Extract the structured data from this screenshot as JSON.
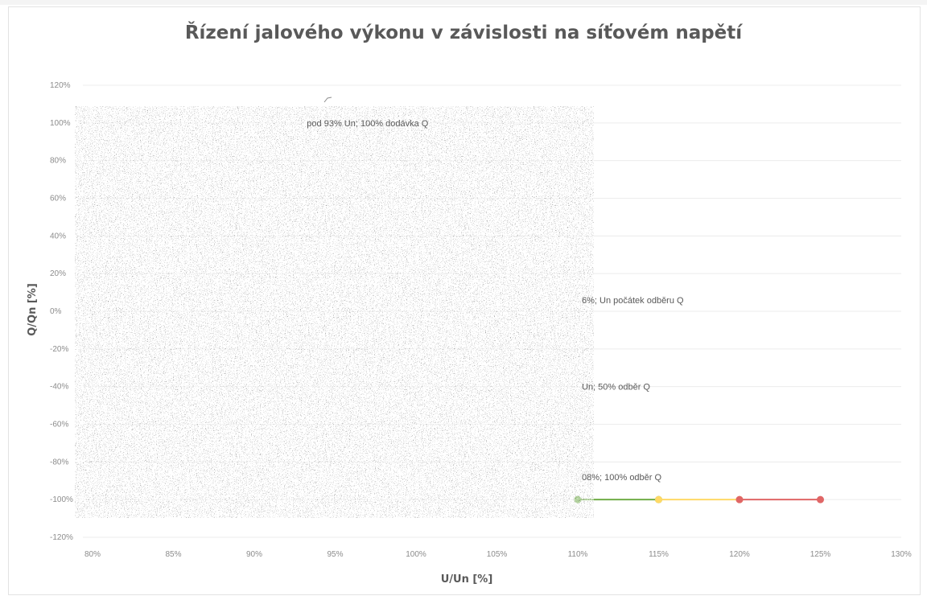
{
  "chart_data": {
    "type": "line",
    "title": "Řízení jalového výkonu v závislosti na síťovém napětí",
    "xlabel": "U/Un [%]",
    "ylabel": "Q/Qn [%]",
    "xlim": [
      80,
      130
    ],
    "ylim": [
      -120,
      120
    ],
    "x_ticks": [
      "80%",
      "85%",
      "90%",
      "95%",
      "100%",
      "105%",
      "110%",
      "115%",
      "120%",
      "125%",
      "130%"
    ],
    "y_ticks": [
      "120%",
      "100%",
      "80%",
      "60%",
      "40%",
      "20%",
      "0%",
      "-20%",
      "-40%",
      "-60%",
      "-80%",
      "-100%",
      "-120%"
    ],
    "grid": true,
    "series": [
      {
        "color": "#70ad47",
        "points": [
          [
            110,
            -100
          ],
          [
            115,
            -100
          ]
        ]
      },
      {
        "color": "#ffd966",
        "points": [
          [
            115,
            -100
          ],
          [
            120,
            -100
          ]
        ]
      },
      {
        "color": "#e06666",
        "points": [
          [
            120,
            -100
          ],
          [
            125,
            -100
          ]
        ]
      }
    ],
    "annotations": [
      {
        "text": "pod 93% Un; 100% dodávka Q",
        "x": 93,
        "y": 100
      },
      {
        "text": "6%; Un  počátek odběru Q",
        "x": 110,
        "y": 6
      },
      {
        "text": "Un;  50% odběr Q",
        "x": 110,
        "y": -40
      },
      {
        "text": "08%; 100% odběr Q",
        "x": 110,
        "y": -88
      }
    ]
  }
}
